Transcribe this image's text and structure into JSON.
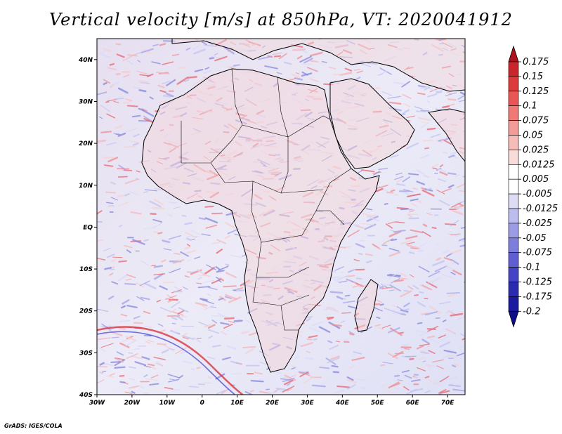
{
  "title": "Vertical velocity [m/s] at 850hPa, VT: 2020041912",
  "credit": "GrADS: IGES/COLA",
  "map": {
    "lon_range": [
      -30,
      75
    ],
    "lat_range": [
      -40,
      45
    ],
    "x_ticks": [
      "30W",
      "20W",
      "10W",
      "0",
      "10E",
      "20E",
      "30E",
      "40E",
      "50E",
      "60E",
      "70E"
    ],
    "y_ticks": [
      "40S",
      "30S",
      "20S",
      "10S",
      "EQ",
      "10N",
      "20N",
      "30N",
      "40N"
    ],
    "field": "vertical velocity",
    "level": "850hPa"
  },
  "colorbar": {
    "labels": [
      "0.175",
      "0.15",
      "0.125",
      "0.1",
      "0.075",
      "0.05",
      "0.025",
      "0.0125",
      "0.005",
      "-0.005",
      "-0.0125",
      "-0.025",
      "-0.05",
      "-0.075",
      "-0.1",
      "-0.125",
      "-0.175",
      "-0.2"
    ],
    "colors": [
      "#b0111e",
      "#c9262b",
      "#dc3a3b",
      "#e85755",
      "#ef7a75",
      "#f39c97",
      "#f6bcb8",
      "#f9dcd9",
      "#ffffff",
      "#ffffff",
      "#dcdcf5",
      "#bcbcee",
      "#9c9ce6",
      "#7d7ddc",
      "#5f5fd2",
      "#4444c4",
      "#2b2bb2",
      "#1a1aa0",
      "#0e0e8a"
    ]
  }
}
